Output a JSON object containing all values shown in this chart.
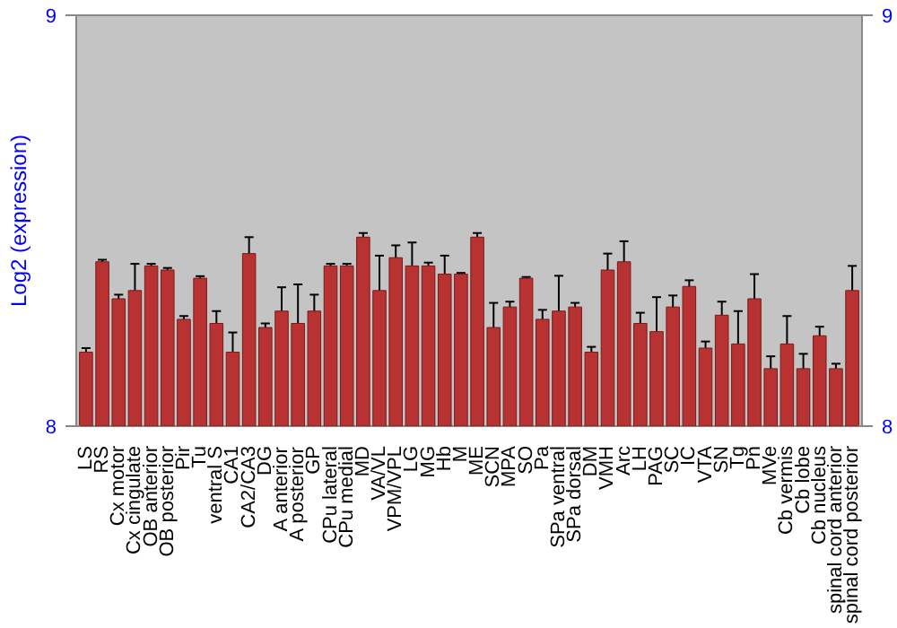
{
  "chart_data": {
    "type": "bar",
    "ylabel": "Log2 (expression)",
    "categories": [
      "LS",
      "RS",
      "Cx motor",
      "Cx cingulate",
      "OB anterior",
      "OB posterior",
      "Pir",
      "Tu",
      "ventral S",
      "CA1",
      "CA2/CA3",
      "DG",
      "A anterior",
      "A posterior",
      "GP",
      "CPu lateral",
      "CPu medial",
      "MD",
      "VA/VL",
      "VPM/VPL",
      "LG",
      "MG",
      "Hb",
      "M",
      "ME",
      "SCN",
      "MPA",
      "SO",
      "Pa",
      "SPa ventral",
      "SPa dorsal",
      "DM",
      "VMH",
      "Arc",
      "LH",
      "PAG",
      "SC",
      "IC",
      "VTA",
      "SN",
      "Tg",
      "Pn",
      "MVe",
      "Cb vermis",
      "Cb lobe",
      "Cb nucleus",
      "spinal cord anterior",
      "spinal cord posterior"
    ],
    "values": [
      8.18,
      8.4,
      8.31,
      8.33,
      8.39,
      8.38,
      8.26,
      8.36,
      8.25,
      8.18,
      8.42,
      8.24,
      8.28,
      8.25,
      8.28,
      8.39,
      8.39,
      8.46,
      8.33,
      8.41,
      8.39,
      8.39,
      8.37,
      8.37,
      8.46,
      8.24,
      8.29,
      8.36,
      8.26,
      8.28,
      8.29,
      8.18,
      8.38,
      8.4,
      8.25,
      8.23,
      8.29,
      8.34,
      8.19,
      8.27,
      8.2,
      8.31,
      8.14,
      8.2,
      8.14,
      8.22,
      8.14,
      8.33
    ],
    "errors": [
      0.01,
      0.005,
      0.01,
      0.065,
      0.005,
      0.005,
      0.008,
      0.005,
      0.03,
      0.048,
      0.04,
      0.01,
      0.058,
      0.095,
      0.04,
      0.005,
      0.005,
      0.01,
      0.085,
      0.03,
      0.057,
      0.008,
      0.045,
      0.003,
      0.01,
      0.06,
      0.013,
      0.003,
      0.023,
      0.086,
      0.01,
      0.013,
      0.04,
      0.05,
      0.026,
      0.084,
      0.028,
      0.015,
      0.016,
      0.033,
      0.08,
      0.06,
      0.03,
      0.068,
      0.036,
      0.022,
      0.012,
      0.06
    ],
    "color": "#b83232",
    "ylim": [
      8,
      9
    ],
    "yticks": [
      8,
      9
    ],
    "y2lim": [
      8,
      9
    ],
    "y2ticks": [
      8,
      9
    ],
    "grid": false
  }
}
